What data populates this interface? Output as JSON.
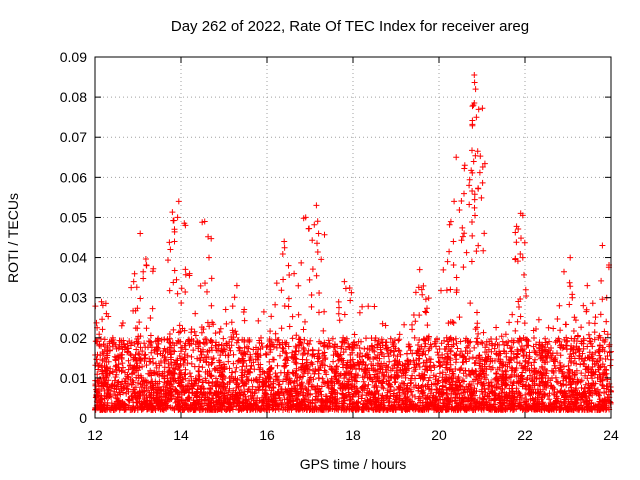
{
  "chart_data": {
    "type": "scatter",
    "title": "Day 262 of 2022, Rate Of TEC Index for receiver areg",
    "xlabel": "GPS time / hours",
    "ylabel": "ROTI / TECUs",
    "xlim": [
      12,
      24
    ],
    "ylim": [
      0,
      0.09
    ],
    "xticks": [
      "12",
      "14",
      "16",
      "18",
      "20",
      "22",
      "24"
    ],
    "yticks": [
      "0",
      "0.01",
      "0.02",
      "0.03",
      "0.04",
      "0.05",
      "0.06",
      "0.07",
      "0.08",
      "0.09"
    ],
    "grid": true,
    "marker": "+",
    "series_color": "#ff0000",
    "series": [
      {
        "name": "ROTI",
        "notes": "Dense cloud of + markers 0.002-0.02 across whole range, with peaks listed below",
        "baseline": {
          "low": 0.002,
          "high": 0.02,
          "density_per_hour": 380
        },
        "peaks": [
          {
            "x": 12.15,
            "y": 0.029
          },
          {
            "x": 12.9,
            "y": 0.034
          },
          {
            "x": 13.05,
            "y": 0.046
          },
          {
            "x": 13.2,
            "y": 0.038
          },
          {
            "x": 13.85,
            "y": 0.044
          },
          {
            "x": 13.95,
            "y": 0.054
          },
          {
            "x": 13.92,
            "y": 0.05
          },
          {
            "x": 14.2,
            "y": 0.036
          },
          {
            "x": 14.55,
            "y": 0.049
          },
          {
            "x": 14.65,
            "y": 0.04
          },
          {
            "x": 15.3,
            "y": 0.033
          },
          {
            "x": 16.4,
            "y": 0.044
          },
          {
            "x": 16.5,
            "y": 0.038
          },
          {
            "x": 16.9,
            "y": 0.05
          },
          {
            "x": 17.15,
            "y": 0.053
          },
          {
            "x": 17.2,
            "y": 0.046
          },
          {
            "x": 17.8,
            "y": 0.034
          },
          {
            "x": 19.55,
            "y": 0.037
          },
          {
            "x": 19.6,
            "y": 0.032
          },
          {
            "x": 20.2,
            "y": 0.039
          },
          {
            "x": 20.35,
            "y": 0.054
          },
          {
            "x": 20.4,
            "y": 0.065
          },
          {
            "x": 20.6,
            "y": 0.063
          },
          {
            "x": 20.7,
            "y": 0.058
          },
          {
            "x": 20.8,
            "y": 0.078
          },
          {
            "x": 20.82,
            "y": 0.0855
          },
          {
            "x": 20.85,
            "y": 0.082
          },
          {
            "x": 20.87,
            "y": 0.075
          },
          {
            "x": 20.9,
            "y": 0.0665
          },
          {
            "x": 21.9,
            "y": 0.051
          },
          {
            "x": 21.95,
            "y": 0.0505
          },
          {
            "x": 21.95,
            "y": 0.04
          },
          {
            "x": 22.8,
            "y": 0.028
          },
          {
            "x": 23.05,
            "y": 0.04
          },
          {
            "x": 23.45,
            "y": 0.033
          },
          {
            "x": 23.8,
            "y": 0.043
          },
          {
            "x": 23.9,
            "y": 0.03
          }
        ]
      }
    ]
  }
}
